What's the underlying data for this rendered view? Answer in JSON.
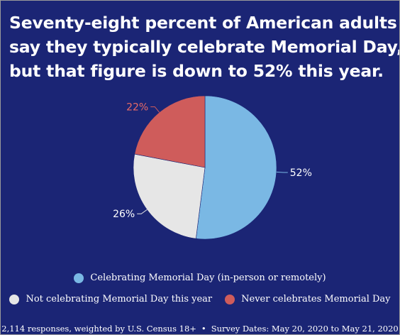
{
  "title_lines": [
    "Seventy-eight percent of American adults",
    "say they typically celebrate Memorial Day,",
    "but that figure is down to 52% this year."
  ],
  "colors": {
    "background": "#1b2575",
    "celebrating": "#7ab8e4",
    "not_celebrating": "#e6e6e6",
    "never": "#cf5c5b",
    "text": "#ffffff"
  },
  "chart_data": {
    "type": "pie",
    "slices": [
      {
        "label": "Celebrating Memorial Day (in-person or remotely)",
        "value": 52,
        "value_label": "52%",
        "color": "#7ab8e4",
        "label_color": "#ffffff"
      },
      {
        "label": "Not celebrating Memorial Day this year",
        "value": 26,
        "value_label": "26%",
        "color": "#e6e6e6",
        "label_color": "#ffffff"
      },
      {
        "label": "Never celebrates Memorial Day",
        "value": 22,
        "value_label": "22%",
        "color": "#cf5c5b",
        "label_color": "#e86a66"
      }
    ],
    "legend_placement": "bottom"
  },
  "footer": {
    "responses": "2,114 responses, weighted by U.S. Census 18+",
    "separator": "•",
    "dates": "Survey Dates: May 20, 2020 to May 21, 2020"
  }
}
